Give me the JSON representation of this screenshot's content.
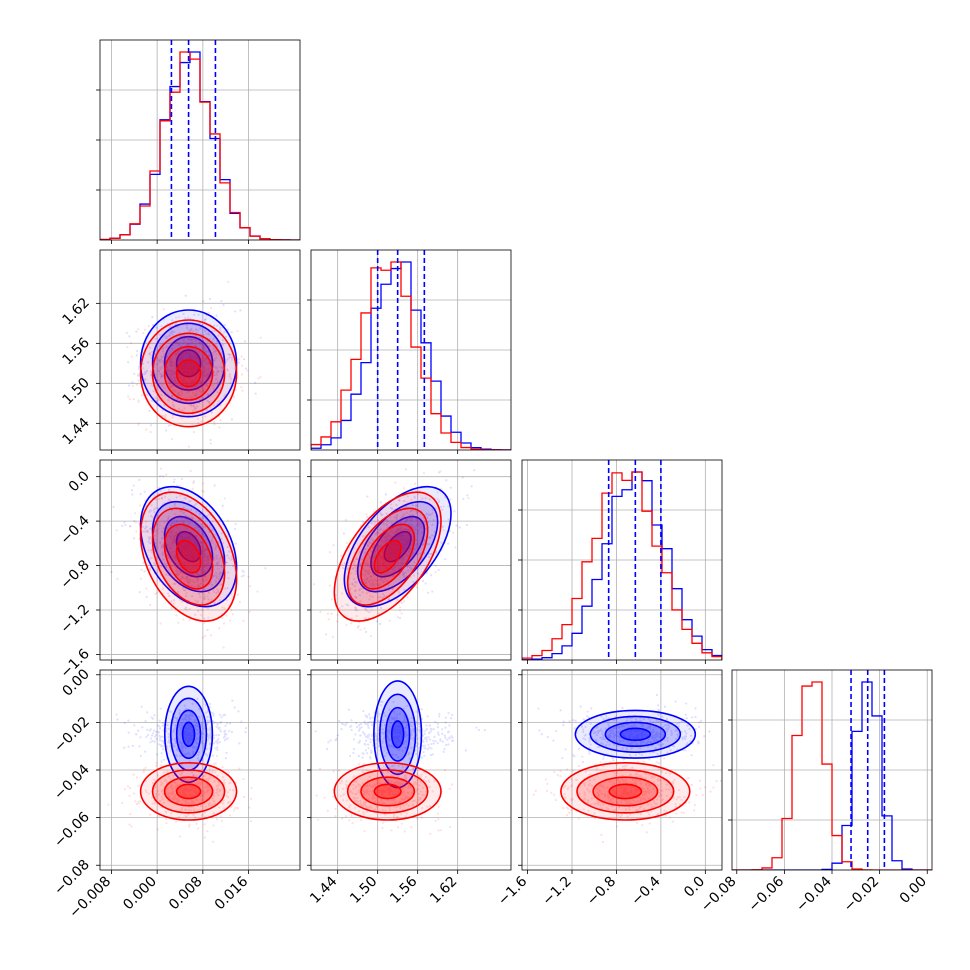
{
  "colors": {
    "series_a": "#0000ff",
    "series_b": "#ff0000",
    "grid": "#b0b0b0",
    "frame": "#000000"
  },
  "chart_data": {
    "type": "corner",
    "grid": true,
    "series": [
      {
        "color": "#0000ff",
        "mean": [
          0.0055,
          1.53,
          -0.63,
          -0.025
        ],
        "sd": [
          0.0042,
          0.04,
          0.27,
          0.005
        ],
        "corr_12": 0.0,
        "corr_13": -0.35,
        "corr_23": 0.55
      },
      {
        "color": "#ff0000",
        "mean": [
          0.0055,
          1.515,
          -0.72,
          -0.049
        ],
        "sd": [
          0.0042,
          0.04,
          0.29,
          0.006
        ],
        "corr_12": 0.0,
        "corr_13": -0.35,
        "corr_23": 0.55
      }
    ],
    "quantile_lines": [
      [
        0.0025,
        0.0055,
        0.0102
      ],
      [
        1.5,
        1.53,
        1.57
      ],
      [
        -0.87,
        -0.63,
        -0.4
      ],
      [
        -0.032,
        -0.025,
        -0.018
      ]
    ],
    "axes": [
      {
        "range": [
          -0.01,
          0.025
        ],
        "ticks": [
          -0.008,
          0.0,
          0.008,
          0.016
        ],
        "tick_labels": [
          "−0.008",
          "0.000",
          "0.008",
          "0.016"
        ]
      },
      {
        "range": [
          1.4,
          1.7
        ],
        "ticks": [
          1.44,
          1.5,
          1.56,
          1.62
        ],
        "tick_labels": [
          "1.44",
          "1.50",
          "1.56",
          "1.62"
        ]
      },
      {
        "range": [
          -1.65,
          0.15
        ],
        "ticks": [
          -1.6,
          -1.2,
          -0.8,
          -0.4,
          0.0
        ],
        "tick_labels": [
          "−1.6",
          "−1.2",
          "−0.8",
          "−0.4",
          "0.0"
        ]
      },
      {
        "range": [
          -0.082,
          0.002
        ],
        "ticks": [
          -0.08,
          -0.06,
          -0.04,
          -0.02,
          0.0
        ],
        "tick_labels": [
          "−0.08",
          "−0.06",
          "−0.04",
          "−0.02",
          "0.00"
        ]
      }
    ]
  }
}
